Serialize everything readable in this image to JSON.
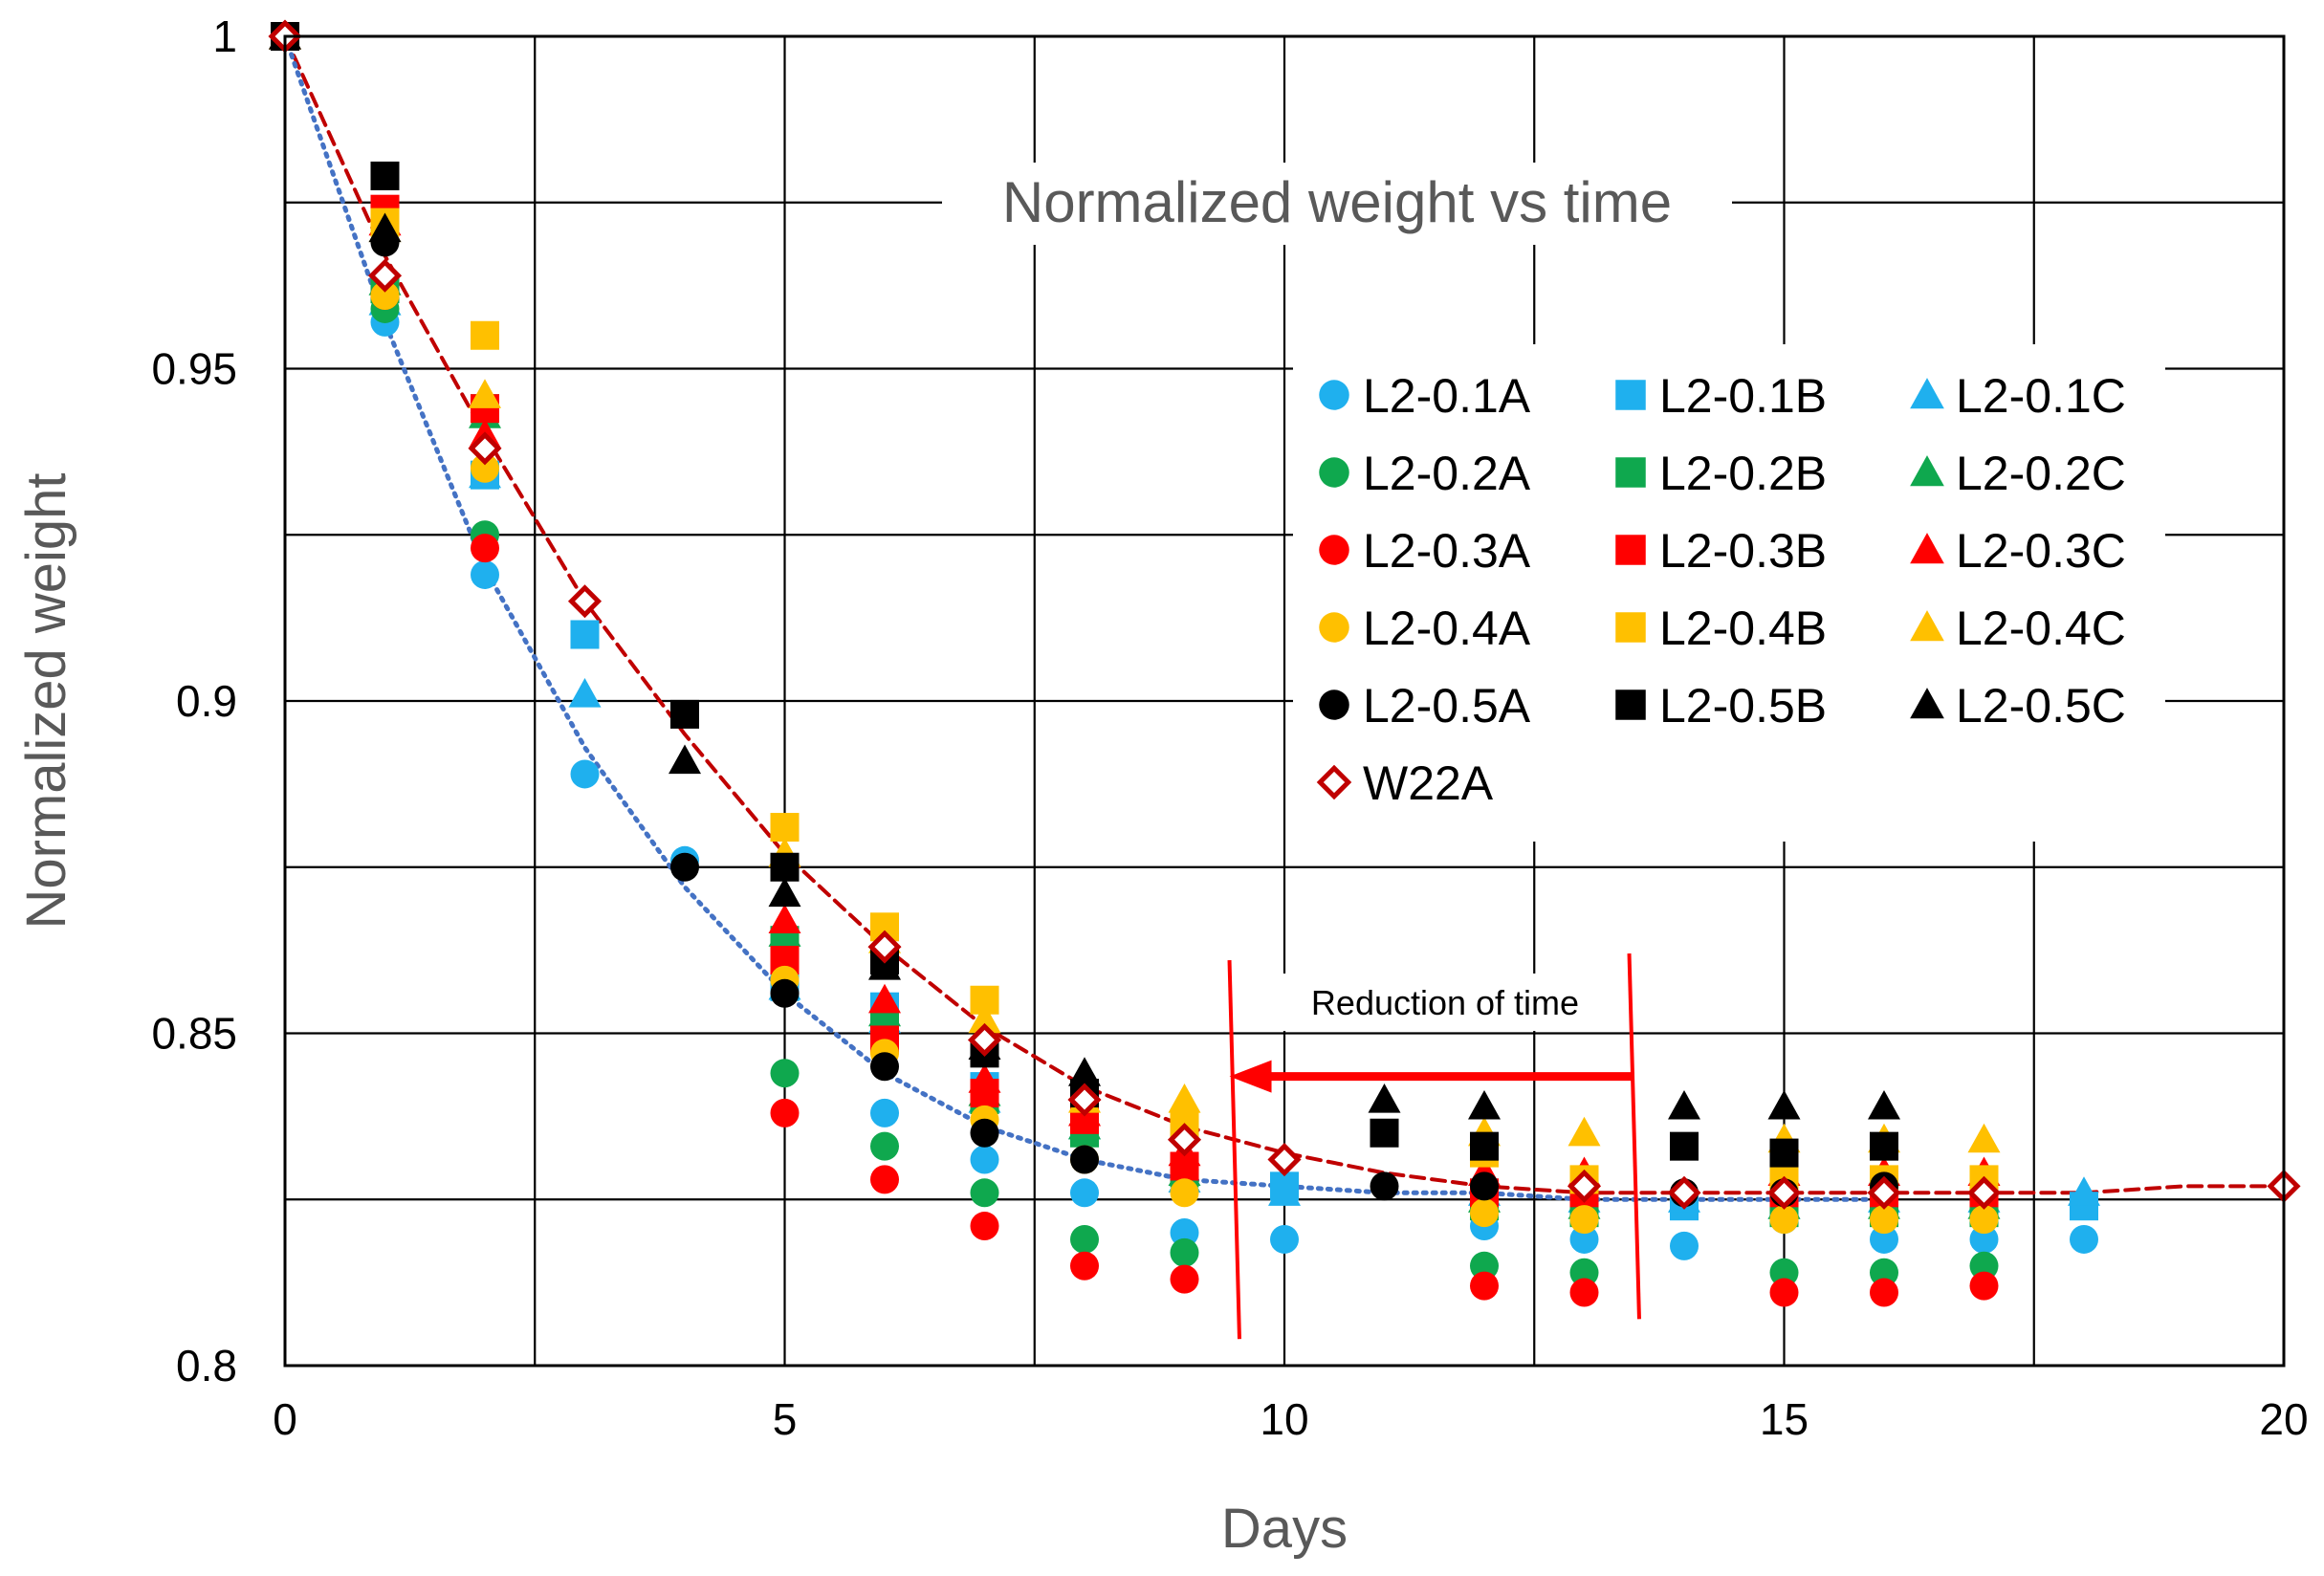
{
  "chart_data": {
    "type": "scatter",
    "title": "Normalized weight vs time",
    "xlabel": "Days",
    "ylabel": "Normalized weight",
    "xlim": [
      0,
      20
    ],
    "ylim": [
      0.8,
      1
    ],
    "x_ticks": [
      "0",
      "5",
      "10",
      "15",
      "20"
    ],
    "y_ticks": [
      "0.8",
      "0.85",
      "0.9",
      "0.95",
      "1"
    ],
    "x_tick_values": [
      0,
      5,
      10,
      15,
      20
    ],
    "y_tick_values": [
      0.8,
      0.85,
      0.9,
      0.95,
      1
    ],
    "x_grid": [
      0,
      2.5,
      5,
      7.5,
      10,
      12.5,
      15,
      17.5,
      20
    ],
    "y_grid": [
      0.8,
      0.825,
      0.85,
      0.875,
      0.9,
      0.925,
      0.95,
      0.975,
      1
    ],
    "grid": true,
    "legend_position": "right-middle",
    "annotation": {
      "text": "Reduction of time",
      "arrow_from": [
        13.5,
        0.8435
      ],
      "arrow_to": [
        9.45,
        0.8435
      ],
      "left_bar": [
        [
          9.45,
          0.861
        ],
        [
          9.55,
          0.804
        ]
      ],
      "right_bar": [
        [
          13.45,
          0.862
        ],
        [
          13.55,
          0.807
        ]
      ]
    },
    "series": [
      {
        "name": "L2-0.1A",
        "marker": "circle",
        "color": "#1FB0EE",
        "x": [
          0,
          1,
          2,
          3,
          4,
          5,
          6,
          7,
          8,
          9,
          10,
          12,
          13,
          14,
          15,
          16,
          17,
          18
        ],
        "y": [
          1,
          0.957,
          0.919,
          0.889,
          0.876,
          0.859,
          0.838,
          0.831,
          0.826,
          0.82,
          0.819,
          0.821,
          0.819,
          0.818,
          0.822,
          0.819,
          0.819,
          0.819
        ]
      },
      {
        "name": "L2-0.1B",
        "marker": "square",
        "color": "#1FB0EE",
        "x": [
          0,
          1,
          2,
          3,
          5,
          6,
          7,
          8,
          9,
          10,
          12,
          13,
          14,
          15,
          16,
          17,
          18
        ],
        "y": [
          1,
          0.962,
          0.934,
          0.91,
          0.857,
          0.854,
          0.842,
          0.837,
          0.829,
          0.827,
          0.826,
          0.825,
          0.824,
          0.824,
          0.824,
          0.824,
          0.824
        ]
      },
      {
        "name": "L2-0.1C",
        "marker": "triangle",
        "color": "#1FB0EE",
        "x": [
          0,
          1,
          2,
          3,
          5,
          6,
          7,
          8,
          9,
          10,
          12,
          13,
          14,
          15,
          16,
          17,
          18
        ],
        "y": [
          1,
          0.96,
          0.934,
          0.901,
          0.857,
          0.852,
          0.84,
          0.836,
          0.828,
          0.826,
          0.826,
          0.825,
          0.825,
          0.824,
          0.825,
          0.825,
          0.826
        ]
      },
      {
        "name": "L2-0.2A",
        "marker": "circle",
        "color": "#0FA84E",
        "x": [
          0,
          1,
          2,
          5,
          6,
          7,
          8,
          9,
          12,
          13,
          15,
          16,
          17
        ],
        "y": [
          1,
          0.959,
          0.925,
          0.844,
          0.833,
          0.826,
          0.819,
          0.817,
          0.815,
          0.814,
          0.814,
          0.814,
          0.815
        ]
      },
      {
        "name": "L2-0.2B",
        "marker": "square",
        "color": "#0FA84E",
        "x": [
          0,
          1,
          2,
          5,
          6,
          7,
          8,
          9,
          12,
          13,
          15,
          16,
          17
        ],
        "y": [
          1,
          0.962,
          0.944,
          0.864,
          0.851,
          0.84,
          0.835,
          0.829,
          0.824,
          0.823,
          0.823,
          0.823,
          0.823
        ]
      },
      {
        "name": "L2-0.2C",
        "marker": "triangle",
        "color": "#0FA84E",
        "x": [
          0,
          1,
          2,
          5,
          6,
          7,
          8,
          9,
          12,
          13,
          15,
          16,
          17
        ],
        "y": [
          1,
          0.963,
          0.943,
          0.865,
          0.853,
          0.841,
          0.836,
          0.829,
          0.825,
          0.824,
          0.824,
          0.824,
          0.824
        ]
      },
      {
        "name": "L2-0.3A",
        "marker": "circle",
        "color": "#FF0000",
        "x": [
          0,
          1,
          2,
          5,
          6,
          7,
          8,
          9,
          12,
          13,
          15,
          16,
          17
        ],
        "y": [
          1,
          0.961,
          0.923,
          0.838,
          0.828,
          0.821,
          0.815,
          0.813,
          0.812,
          0.811,
          0.811,
          0.811,
          0.812
        ]
      },
      {
        "name": "L2-0.3B",
        "marker": "square",
        "color": "#FF0000",
        "x": [
          0,
          1,
          2,
          5,
          6,
          7,
          8,
          9,
          12,
          13,
          15,
          16,
          17
        ],
        "y": [
          1,
          0.974,
          0.944,
          0.861,
          0.849,
          0.841,
          0.837,
          0.83,
          0.826,
          0.826,
          0.826,
          0.826,
          0.826
        ]
      },
      {
        "name": "L2-0.3C",
        "marker": "triangle",
        "color": "#FF0000",
        "x": [
          0,
          1,
          2,
          5,
          6,
          7,
          8,
          9,
          12,
          13,
          15,
          16,
          17
        ],
        "y": [
          1,
          0.972,
          0.94,
          0.867,
          0.855,
          0.843,
          0.838,
          0.832,
          0.829,
          0.829,
          0.829,
          0.829,
          0.829
        ]
      },
      {
        "name": "L2-0.4A",
        "marker": "circle",
        "color": "#FFC000",
        "x": [
          0,
          1,
          2,
          5,
          6,
          7,
          8,
          9,
          12,
          13,
          15,
          16,
          17
        ],
        "y": [
          1,
          0.961,
          0.935,
          0.858,
          0.847,
          0.837,
          0.831,
          0.826,
          0.823,
          0.822,
          0.822,
          0.822,
          0.822
        ]
      },
      {
        "name": "L2-0.4B",
        "marker": "square",
        "color": "#FFC000",
        "x": [
          0,
          1,
          2,
          5,
          6,
          7,
          8,
          9,
          12,
          13,
          15,
          16,
          17
        ],
        "y": [
          1,
          0.972,
          0.955,
          0.881,
          0.866,
          0.855,
          0.841,
          0.836,
          0.832,
          0.828,
          0.828,
          0.828,
          0.828
        ]
      },
      {
        "name": "L2-0.4C",
        "marker": "triangle",
        "color": "#FFC000",
        "x": [
          0,
          1,
          2,
          5,
          6,
          7,
          8,
          9,
          12,
          13,
          15,
          16,
          17
        ],
        "y": [
          1,
          0.971,
          0.946,
          0.877,
          0.864,
          0.852,
          0.84,
          0.84,
          0.835,
          0.835,
          0.834,
          0.834,
          0.834
        ]
      },
      {
        "name": "L2-0.5A",
        "marker": "circle",
        "color": "#000000",
        "x": [
          0,
          1,
          4,
          5,
          6,
          7,
          8,
          11,
          12,
          14,
          15,
          16
        ],
        "y": [
          1,
          0.969,
          0.875,
          0.856,
          0.845,
          0.835,
          0.831,
          0.827,
          0.827,
          0.826,
          0.826,
          0.827
        ]
      },
      {
        "name": "L2-0.5B",
        "marker": "square",
        "color": "#000000",
        "x": [
          0,
          1,
          4,
          5,
          6,
          7,
          8,
          11,
          12,
          14,
          15,
          16
        ],
        "y": [
          1,
          0.979,
          0.898,
          0.875,
          0.861,
          0.847,
          0.841,
          0.835,
          0.833,
          0.833,
          0.832,
          0.833
        ]
      },
      {
        "name": "L2-0.5C",
        "marker": "triangle",
        "color": "#000000",
        "x": [
          0,
          1,
          4,
          5,
          6,
          7,
          8,
          11,
          12,
          14,
          15,
          16
        ],
        "y": [
          1,
          0.971,
          0.891,
          0.871,
          0.86,
          0.848,
          0.844,
          0.84,
          0.839,
          0.839,
          0.839,
          0.839
        ]
      },
      {
        "name": "W22A",
        "marker": "diamond-open",
        "color": "#C00000",
        "x": [
          0,
          1,
          2,
          3,
          6,
          7,
          8,
          9,
          10,
          13,
          14,
          15,
          16,
          17,
          20
        ],
        "y": [
          1,
          0.964,
          0.938,
          0.915,
          0.863,
          0.849,
          0.84,
          0.834,
          0.831,
          0.827,
          0.826,
          0.826,
          0.826,
          0.826,
          0.827
        ]
      }
    ],
    "trendlines": [
      {
        "name": "W22A-trend",
        "style": "dashed",
        "color": "#C00000",
        "x": [
          0,
          1,
          2,
          3,
          4,
          5,
          6,
          7,
          8,
          9,
          10,
          11,
          12,
          13,
          14,
          15,
          16,
          17,
          18,
          19,
          20
        ],
        "y": [
          1,
          0.967,
          0.94,
          0.915,
          0.895,
          0.877,
          0.863,
          0.851,
          0.842,
          0.836,
          0.832,
          0.829,
          0.827,
          0.826,
          0.826,
          0.826,
          0.826,
          0.826,
          0.826,
          0.827,
          0.827
        ]
      },
      {
        "name": "L2-0.1A-trend",
        "style": "dotted",
        "color": "#4472C4",
        "x": [
          0,
          1,
          2,
          3,
          4,
          5,
          6,
          7,
          8,
          9,
          10,
          11,
          12,
          13,
          14,
          15,
          16
        ],
        "y": [
          1,
          0.957,
          0.92,
          0.893,
          0.872,
          0.856,
          0.844,
          0.836,
          0.831,
          0.828,
          0.827,
          0.826,
          0.826,
          0.825,
          0.825,
          0.825,
          0.825
        ]
      }
    ]
  }
}
